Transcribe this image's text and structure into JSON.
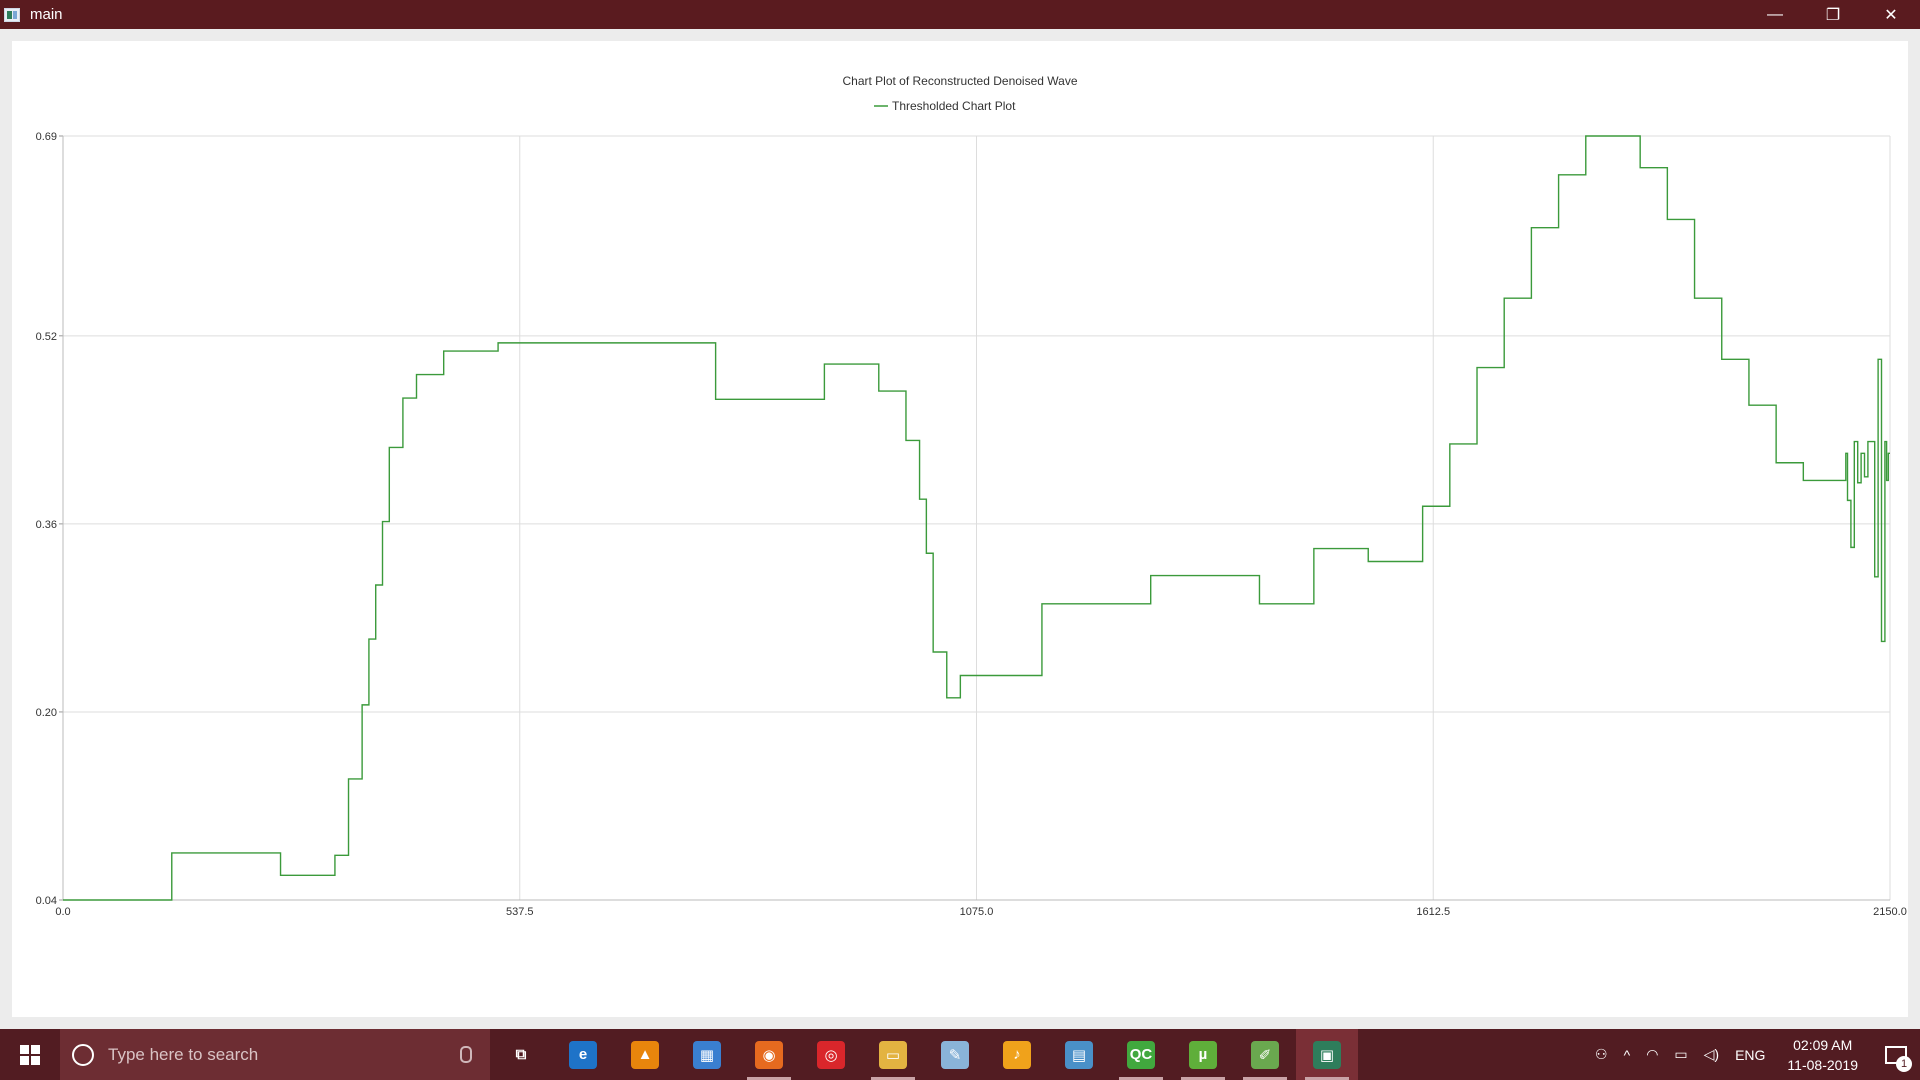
{
  "window": {
    "title": "main",
    "controls": {
      "minimize": "—",
      "restore": "❐",
      "close": "✕"
    }
  },
  "colors": {
    "titlebar": "#5a1b1f",
    "taskbar": "#521c22",
    "series_line": "#3b9a3b",
    "grid": "#dddddd"
  },
  "chart_data": {
    "type": "line",
    "title": "Chart Plot of Reconstructed Denoised Wave",
    "xlabel": "",
    "ylabel": "",
    "xlim": [
      0,
      2150
    ],
    "ylim": [
      0.04,
      0.69
    ],
    "x_ticks": [
      "0.0",
      "537.5",
      "1075.0",
      "1612.5",
      "2150.0"
    ],
    "y_ticks": [
      "0.69",
      "0.52",
      "0.36",
      "0.20",
      "0.04"
    ],
    "x_tick_values": [
      0,
      537.5,
      1075,
      1612.5,
      2150
    ],
    "y_tick_values": [
      0.69,
      0.52,
      0.36,
      0.2,
      0.04
    ],
    "grid": true,
    "legend": "top-center",
    "series": [
      {
        "name": "Thresholded Chart Plot",
        "step": true,
        "x": [
          0,
          128,
          256,
          320,
          336,
          352,
          360,
          368,
          376,
          384,
          400,
          416,
          448,
          512,
          768,
          896,
          960,
          992,
          1008,
          1016,
          1024,
          1040,
          1056,
          1088,
          1152,
          1280,
          1408,
          1472,
          1536,
          1600,
          1632,
          1664,
          1696,
          1728,
          1760,
          1792,
          1824,
          1856,
          1888,
          1920,
          1952,
          1984,
          2016,
          2048,
          2098,
          2100,
          2104,
          2108,
          2112,
          2116,
          2120,
          2124,
          2128,
          2132,
          2136,
          2140,
          2144,
          2146,
          2148,
          2150
        ],
        "y": [
          0.04,
          0.08,
          0.061,
          0.078,
          0.143,
          0.206,
          0.262,
          0.308,
          0.362,
          0.425,
          0.467,
          0.487,
          0.507,
          0.514,
          0.466,
          0.496,
          0.473,
          0.431,
          0.381,
          0.335,
          0.251,
          0.212,
          0.231,
          0.231,
          0.292,
          0.316,
          0.292,
          0.339,
          0.328,
          0.375,
          0.428,
          0.493,
          0.552,
          0.612,
          0.657,
          0.69,
          0.69,
          0.663,
          0.619,
          0.552,
          0.5,
          0.461,
          0.412,
          0.397,
          0.42,
          0.38,
          0.34,
          0.43,
          0.395,
          0.42,
          0.4,
          0.43,
          0.43,
          0.315,
          0.5,
          0.26,
          0.43,
          0.397,
          0.42,
          0.42
        ]
      }
    ]
  },
  "taskbar": {
    "search_placeholder": "Type here to search",
    "apps": [
      {
        "name": "task-view-icon",
        "label": "⧉",
        "color": "transparent"
      },
      {
        "name": "edge-icon",
        "label": "e",
        "color": "#1e73c8"
      },
      {
        "name": "vlc-icon",
        "label": "▲",
        "color": "#e8850c"
      },
      {
        "name": "store-icon",
        "label": "▦",
        "color": "#3a7fd0"
      },
      {
        "name": "firefox-icon",
        "label": "◉",
        "color": "#e66a1f"
      },
      {
        "name": "music-player-icon",
        "label": "◎",
        "color": "#d9262b"
      },
      {
        "name": "file-explorer-icon",
        "label": "▭",
        "color": "#e3b341"
      },
      {
        "name": "paint-icon",
        "label": "✎",
        "color": "#8ab4d8"
      },
      {
        "name": "fl-studio-icon",
        "label": "♪",
        "color": "#f0a21b"
      },
      {
        "name": "control-panel-icon",
        "label": "▤",
        "color": "#4a90c8"
      },
      {
        "name": "qt-creator-icon",
        "label": "QC",
        "color": "#41a83e"
      },
      {
        "name": "utorrent-icon",
        "label": "µ",
        "color": "#5fae3a"
      },
      {
        "name": "notepad-icon",
        "label": "✐",
        "color": "#6aa84f"
      },
      {
        "name": "main-app-icon",
        "label": "▣",
        "color": "#2e7d5b"
      }
    ],
    "tray": {
      "people": "⚇",
      "chevron": "^",
      "wifi": "◠",
      "battery": "▭",
      "volume": "◁)",
      "language": "ENG",
      "time": "02:09 AM",
      "date": "11-08-2019",
      "notifications": "1"
    }
  }
}
